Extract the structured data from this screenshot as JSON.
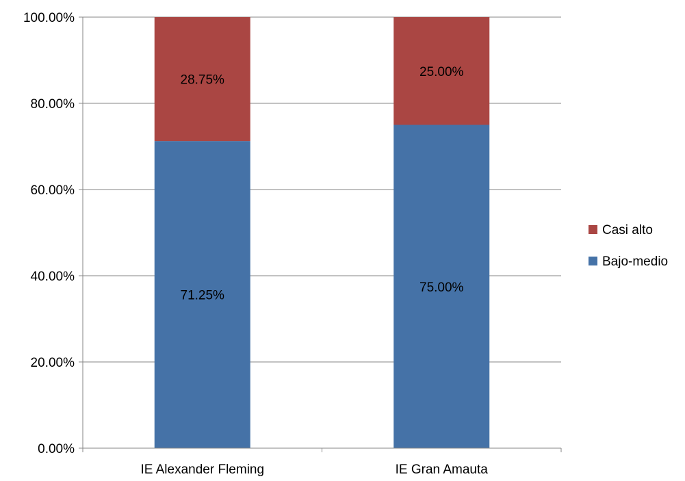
{
  "chart_data": {
    "type": "bar",
    "stacked": true,
    "categories": [
      "IE Alexander Fleming",
      "IE Gran Amauta"
    ],
    "series": [
      {
        "name": "Bajo-medio",
        "values": [
          71.25,
          75.0
        ],
        "labels": [
          "71.25%",
          "75.00%"
        ],
        "color": "#4572A7"
      },
      {
        "name": "Casi alto",
        "values": [
          28.75,
          25.0
        ],
        "labels": [
          "28.75%",
          "25.00%"
        ],
        "color": "#AA4643"
      }
    ],
    "ylim": [
      0,
      100
    ],
    "yticks": [
      0,
      20,
      40,
      60,
      80,
      100
    ],
    "ytick_labels": [
      "0.00%",
      "20.00%",
      "40.00%",
      "60.00%",
      "80.00%",
      "100.00%"
    ],
    "title": "",
    "xlabel": "",
    "ylabel": "",
    "grid": true,
    "legend": {
      "position": "right",
      "entries": [
        "Casi alto",
        "Bajo-medio"
      ]
    }
  }
}
